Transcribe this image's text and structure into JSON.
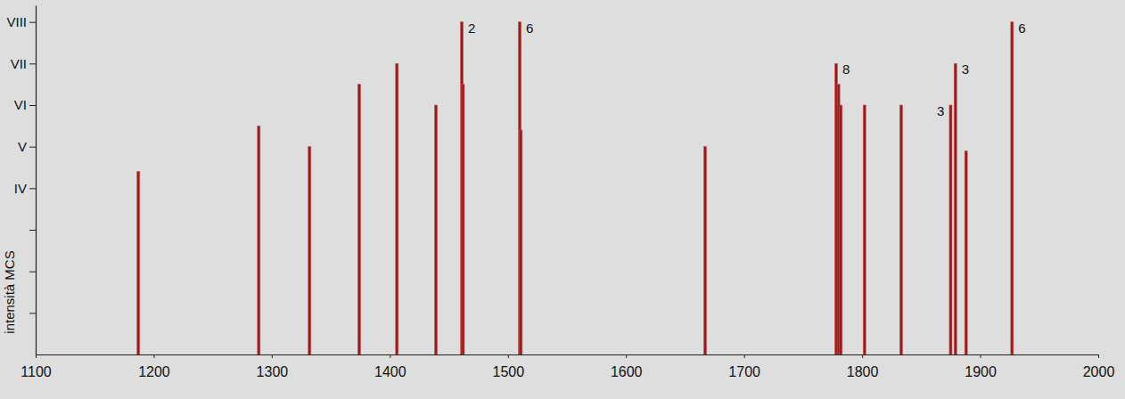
{
  "chart_data": {
    "type": "bar",
    "ylabel": "intensità MCS",
    "x": [
      1187,
      1289,
      1332,
      1374,
      1406,
      1439,
      1461,
      1462,
      1510,
      1511,
      1667,
      1778,
      1780,
      1782,
      1802,
      1833,
      1875,
      1879,
      1888,
      1927
    ],
    "values": [
      4.4,
      5.5,
      5.0,
      6.5,
      7.0,
      6.0,
      8.0,
      6.5,
      8.0,
      5.4,
      5.0,
      7.0,
      6.5,
      6.0,
      6.0,
      6.0,
      6.0,
      7.0,
      4.9,
      8.0
    ],
    "color": "#8e1f1f",
    "xlim": [
      1100,
      2000
    ],
    "xticks": [
      1100,
      1200,
      1300,
      1400,
      1500,
      1600,
      1700,
      1800,
      1900,
      2000
    ],
    "ylim": [
      0,
      8.4
    ],
    "yticks": [
      {
        "value": 1,
        "label": null
      },
      {
        "value": 2,
        "label": null
      },
      {
        "value": 3,
        "label": null
      },
      {
        "value": 4,
        "label": "IV"
      },
      {
        "value": 5,
        "label": "V"
      },
      {
        "value": 6,
        "label": "VI"
      },
      {
        "value": 7,
        "label": "VII"
      },
      {
        "value": 8,
        "label": "VIII"
      }
    ],
    "annotations": [
      {
        "x": 1461,
        "y": 8.0,
        "text": "2",
        "position": "right"
      },
      {
        "x": 1510,
        "y": 8.0,
        "text": "6",
        "position": "right"
      },
      {
        "x": 1778,
        "y": 7.0,
        "text": "8",
        "position": "right"
      },
      {
        "x": 1879,
        "y": 7.0,
        "text": "3",
        "position": "right"
      },
      {
        "x": 1875,
        "y": 6.0,
        "text": "3",
        "position": "left"
      },
      {
        "x": 1927,
        "y": 8.0,
        "text": "6",
        "position": "right"
      }
    ]
  }
}
